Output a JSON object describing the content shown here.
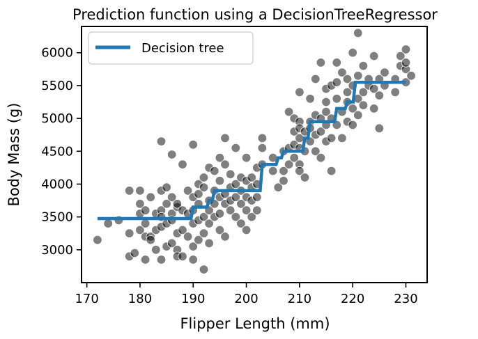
{
  "chart_data": {
    "type": "scatter",
    "title": "Prediction function using a DecisionTreeRegressor",
    "xlabel": "Flipper Length (mm)",
    "ylabel": "Body Mass (g)",
    "xlim": [
      169,
      234
    ],
    "ylim": [
      2500,
      6400
    ],
    "xticks": [
      170,
      180,
      190,
      200,
      210,
      220,
      230
    ],
    "yticks": [
      3000,
      3500,
      4000,
      4500,
      5000,
      5500,
      6000
    ],
    "grid": false,
    "legend": {
      "position": "top-left",
      "entries": [
        "Decision tree"
      ]
    },
    "colors": {
      "points": "#000000",
      "line": "#1f77b4"
    },
    "series": [
      {
        "type": "scatter",
        "points": [
          [
            172,
            3150
          ],
          [
            174,
            3400
          ],
          [
            176,
            3450
          ],
          [
            178,
            3250
          ],
          [
            178,
            3900
          ],
          [
            178,
            2900
          ],
          [
            179,
            2950
          ],
          [
            180,
            3550
          ],
          [
            180,
            3700
          ],
          [
            180,
            3900
          ],
          [
            180,
            3300
          ],
          [
            181,
            3400
          ],
          [
            181,
            3600
          ],
          [
            181,
            3200
          ],
          [
            181,
            2850
          ],
          [
            182,
            3200
          ],
          [
            182,
            3800
          ],
          [
            182,
            3150
          ],
          [
            183,
            3550
          ],
          [
            183,
            3300
          ],
          [
            183,
            3000
          ],
          [
            184,
            3900
          ],
          [
            184,
            3600
          ],
          [
            184,
            3500
          ],
          [
            184,
            4650
          ],
          [
            184,
            3350
          ],
          [
            184,
            2850
          ],
          [
            185,
            3700
          ],
          [
            185,
            3400
          ],
          [
            185,
            3050
          ],
          [
            185,
            3950
          ],
          [
            186,
            3800
          ],
          [
            186,
            3550
          ],
          [
            186,
            3450
          ],
          [
            186,
            3100
          ],
          [
            186,
            4450
          ],
          [
            187,
            3650
          ],
          [
            187,
            3250
          ],
          [
            187,
            3000
          ],
          [
            187,
            3700
          ],
          [
            187,
            2900
          ],
          [
            188,
            3300
          ],
          [
            188,
            3600
          ],
          [
            188,
            2900
          ],
          [
            188,
            4300
          ],
          [
            189,
            3550
          ],
          [
            189,
            3200
          ],
          [
            189,
            3900
          ],
          [
            190,
            3800
          ],
          [
            190,
            3400
          ],
          [
            190,
            3050
          ],
          [
            190,
            3600
          ],
          [
            190,
            4600
          ],
          [
            190,
            2850
          ],
          [
            191,
            3700
          ],
          [
            191,
            3450
          ],
          [
            191,
            3150
          ],
          [
            191,
            4000
          ],
          [
            191,
            3850
          ],
          [
            192,
            3500
          ],
          [
            192,
            3250
          ],
          [
            192,
            2700
          ],
          [
            192,
            3950
          ],
          [
            192,
            4100
          ],
          [
            193,
            3750
          ],
          [
            193,
            3400
          ],
          [
            193,
            3600
          ],
          [
            193,
            4250
          ],
          [
            193,
            3100
          ],
          [
            194,
            3900
          ],
          [
            194,
            3700
          ],
          [
            194,
            3500
          ],
          [
            194,
            4200
          ],
          [
            195,
            3800
          ],
          [
            195,
            3550
          ],
          [
            195,
            4050
          ],
          [
            195,
            3300
          ],
          [
            195,
            4400
          ],
          [
            196,
            3850
          ],
          [
            196,
            3700
          ],
          [
            196,
            4300
          ],
          [
            196,
            3200
          ],
          [
            196,
            4700
          ],
          [
            197,
            3950
          ],
          [
            197,
            3600
          ],
          [
            197,
            3750
          ],
          [
            197,
            4150
          ],
          [
            198,
            3800
          ],
          [
            198,
            3500
          ],
          [
            198,
            4000
          ],
          [
            198,
            4550
          ],
          [
            199,
            3900
          ],
          [
            199,
            3700
          ],
          [
            199,
            4100
          ],
          [
            199,
            3400
          ],
          [
            200,
            3800
          ],
          [
            200,
            4050
          ],
          [
            200,
            3600
          ],
          [
            200,
            3300
          ],
          [
            200,
            4400
          ],
          [
            201,
            3950
          ],
          [
            201,
            3750
          ],
          [
            201,
            4100
          ],
          [
            201,
            3500
          ],
          [
            202,
            3800
          ],
          [
            202,
            4000
          ],
          [
            202,
            4250
          ],
          [
            202,
            3600
          ],
          [
            203,
            4550
          ],
          [
            203,
            4300
          ],
          [
            203,
            4700
          ],
          [
            205,
            4200
          ],
          [
            205,
            4400
          ],
          [
            206,
            3950
          ],
          [
            207,
            4050
          ],
          [
            207,
            4500
          ],
          [
            207,
            4200
          ],
          [
            208,
            4300
          ],
          [
            208,
            4550
          ],
          [
            208,
            5100
          ],
          [
            209,
            4400
          ],
          [
            209,
            5000
          ],
          [
            209,
            4600
          ],
          [
            209,
            4800
          ],
          [
            210,
            4550
          ],
          [
            210,
            4300
          ],
          [
            210,
            4950
          ],
          [
            210,
            4700
          ],
          [
            210,
            5400
          ],
          [
            210,
            4200
          ],
          [
            210,
            4850
          ],
          [
            211,
            4500
          ],
          [
            211,
            4800
          ],
          [
            211,
            4100
          ],
          [
            212,
            4650
          ],
          [
            212,
            4950
          ],
          [
            212,
            5300
          ],
          [
            212,
            4850
          ],
          [
            213,
            4750
          ],
          [
            213,
            5050
          ],
          [
            213,
            4500
          ],
          [
            213,
            5600
          ],
          [
            214,
            4800
          ],
          [
            214,
            5000
          ],
          [
            214,
            5850
          ],
          [
            214,
            4400
          ],
          [
            215,
            4900
          ],
          [
            215,
            5250
          ],
          [
            215,
            4650
          ],
          [
            215,
            5450
          ],
          [
            215,
            5100
          ],
          [
            216,
            5000
          ],
          [
            216,
            4700
          ],
          [
            216,
            5500
          ],
          [
            216,
            4200
          ],
          [
            217,
            5300
          ],
          [
            217,
            5550
          ],
          [
            217,
            4900
          ],
          [
            217,
            5850
          ],
          [
            218,
            5100
          ],
          [
            218,
            5700
          ],
          [
            218,
            4700
          ],
          [
            219,
            5400
          ],
          [
            219,
            4950
          ],
          [
            219,
            5250
          ],
          [
            219,
            5600
          ],
          [
            220,
            5150
          ],
          [
            220,
            5500
          ],
          [
            220,
            6000
          ],
          [
            220,
            4900
          ],
          [
            221,
            5300
          ],
          [
            221,
            5650
          ],
          [
            221,
            6300
          ],
          [
            221,
            5050
          ],
          [
            222,
            5400
          ],
          [
            222,
            5800
          ],
          [
            222,
            5200
          ],
          [
            223,
            5600
          ],
          [
            223,
            5500
          ],
          [
            224,
            5450
          ],
          [
            224,
            5950
          ],
          [
            224,
            5150
          ],
          [
            225,
            5600
          ],
          [
            225,
            5350
          ],
          [
            225,
            4850
          ],
          [
            226,
            5700
          ],
          [
            226,
            5500
          ],
          [
            228,
            5600
          ],
          [
            228,
            5400
          ],
          [
            229,
            5800
          ],
          [
            229,
            5950
          ],
          [
            230,
            5550
          ],
          [
            230,
            5750
          ],
          [
            230,
            6050
          ],
          [
            230,
            5850
          ],
          [
            231,
            5650
          ]
        ]
      },
      {
        "type": "line",
        "name": "Decision tree",
        "points": [
          [
            172,
            3475
          ],
          [
            189.6,
            3475
          ],
          [
            190,
            3650
          ],
          [
            192.6,
            3650
          ],
          [
            193,
            3750
          ],
          [
            193.6,
            3750
          ],
          [
            194,
            3900
          ],
          [
            202.6,
            3900
          ],
          [
            203,
            4300
          ],
          [
            205.6,
            4300
          ],
          [
            206,
            4400
          ],
          [
            206.6,
            4400
          ],
          [
            207,
            4500
          ],
          [
            210.6,
            4500
          ],
          [
            211,
            4700
          ],
          [
            211.6,
            4700
          ],
          [
            212,
            4950
          ],
          [
            216.6,
            4950
          ],
          [
            217,
            5150
          ],
          [
            218.6,
            5150
          ],
          [
            219,
            5250
          ],
          [
            220.1,
            5250
          ],
          [
            220.5,
            5550
          ],
          [
            230,
            5550
          ]
        ]
      }
    ]
  }
}
